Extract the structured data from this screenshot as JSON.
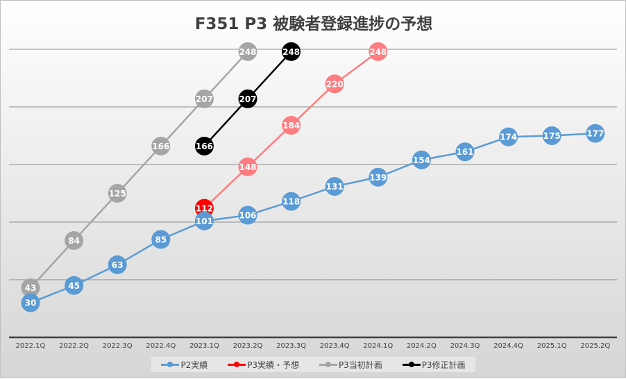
{
  "chart_data": {
    "type": "line",
    "title": "F351 P3 被験者登録進捗の予想",
    "categories": [
      "2022.1Q",
      "2022.2Q",
      "2022.3Q",
      "2022.4Q",
      "2023.1Q",
      "2023.2Q",
      "2023.3Q",
      "2023.4Q",
      "2024.1Q",
      "2024.2Q",
      "2024.3Q",
      "2024.4Q",
      "2025.1Q",
      "2025.2Q"
    ],
    "ylim": [
      0,
      250
    ],
    "grid": true,
    "y_tick_labels_shown": false,
    "legend_position": "bottom",
    "series": [
      {
        "name": "P2実績",
        "color": "#5b9bd5",
        "values": [
          30,
          45,
          63,
          85,
          101,
          106,
          118,
          131,
          139,
          154,
          161,
          174,
          175,
          177
        ]
      },
      {
        "name": "P3実績・予想",
        "color": "#ff0000",
        "line_color": "#ff7c80",
        "values": [
          null,
          null,
          null,
          null,
          112,
          148,
          184,
          220,
          248,
          null,
          null,
          null,
          null,
          null
        ]
      },
      {
        "name": "P3当初計画",
        "color": "#a5a5a5",
        "values": [
          43,
          84,
          125,
          166,
          207,
          248,
          null,
          null,
          null,
          null,
          null,
          null,
          null,
          null
        ]
      },
      {
        "name": "P3修正計画",
        "color": "#000000",
        "values": [
          null,
          null,
          null,
          null,
          166,
          207,
          248,
          null,
          null,
          null,
          null,
          null,
          null,
          null
        ]
      }
    ]
  }
}
